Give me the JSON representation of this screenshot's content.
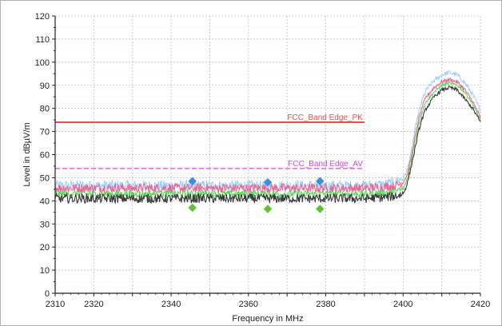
{
  "chart_data": {
    "type": "line",
    "title": "",
    "xlabel": "Frequency in MHz",
    "ylabel": "Level in dBµV/m",
    "xlim": [
      2310,
      2420
    ],
    "ylim": [
      0,
      120
    ],
    "x_ticks": [
      2310,
      2320,
      2340,
      2360,
      2380,
      2400,
      2420
    ],
    "y_ticks": [
      0,
      10,
      20,
      30,
      40,
      50,
      60,
      70,
      80,
      90,
      100,
      110,
      120
    ],
    "grid": true,
    "limit_lines": [
      {
        "label": "FCC_Band Edge_PK",
        "value": 74,
        "x_range": [
          2310,
          2390
        ],
        "style": "solid",
        "color": "#e84c4c"
      },
      {
        "label": "FCC_Band Edge_AV",
        "value": 54,
        "x_range": [
          2310,
          2390
        ],
        "style": "dashed",
        "color": "#e040e0"
      }
    ],
    "series": [
      {
        "color": "#9fd0f5",
        "x": [
          2310,
          2320,
          2330,
          2340,
          2350,
          2360,
          2370,
          2380,
          2390,
          2395,
          2398,
          2400,
          2401,
          2402,
          2403,
          2404,
          2405,
          2406,
          2408,
          2410,
          2412,
          2414,
          2416,
          2418,
          2420
        ],
        "y": [
          46.5,
          46.5,
          46.5,
          46.5,
          46.5,
          46.5,
          46.5,
          46.5,
          46.5,
          47,
          48,
          50,
          53,
          60,
          70,
          78,
          84,
          88,
          92,
          94.5,
          95.5,
          94.5,
          91,
          86,
          79
        ],
        "noise": 2.5
      },
      {
        "color": "#f06292",
        "x": [
          2310,
          2320,
          2330,
          2340,
          2350,
          2360,
          2370,
          2380,
          2390,
          2395,
          2398,
          2400,
          2401,
          2402,
          2403,
          2404,
          2405,
          2406,
          2408,
          2410,
          2412,
          2414,
          2416,
          2418,
          2420
        ],
        "y": [
          45.5,
          45.5,
          45.5,
          45.5,
          45.5,
          45.5,
          45.5,
          45.5,
          45.5,
          46,
          46.5,
          48,
          51,
          58,
          67,
          75,
          81,
          85,
          89,
          91.5,
          92.5,
          91.5,
          88,
          83,
          76
        ],
        "noise": 2.0
      },
      {
        "color": "#5cd65c",
        "x": [
          2310,
          2320,
          2330,
          2340,
          2350,
          2360,
          2370,
          2380,
          2390,
          2395,
          2398,
          2400,
          2401,
          2402,
          2403,
          2404,
          2405,
          2406,
          2408,
          2410,
          2412,
          2414,
          2416,
          2418,
          2420
        ],
        "y": [
          43,
          43,
          43,
          43,
          43,
          43,
          43,
          43,
          43,
          43.5,
          44,
          45,
          49,
          56,
          65,
          73,
          79,
          83,
          87,
          90,
          91,
          90,
          87,
          82,
          75
        ],
        "noise": 1.5
      },
      {
        "color": "#3a3a3a",
        "x": [
          2310,
          2320,
          2330,
          2340,
          2350,
          2360,
          2370,
          2380,
          2390,
          2395,
          2398,
          2400,
          2401,
          2402,
          2403,
          2404,
          2405,
          2406,
          2408,
          2410,
          2412,
          2414,
          2416,
          2418,
          2420
        ],
        "y": [
          41,
          41,
          41,
          41,
          41,
          41,
          41,
          41,
          41,
          41.5,
          42,
          43,
          47,
          54,
          62,
          70,
          76,
          80,
          85,
          88,
          89,
          88,
          84,
          80,
          74
        ],
        "noise": 2.0
      }
    ],
    "markers": [
      {
        "x": 2345.5,
        "y": 48.5,
        "color": "#3b8fe0",
        "shape": "diamond"
      },
      {
        "x": 2365,
        "y": 48,
        "color": "#3b8fe0",
        "shape": "diamond"
      },
      {
        "x": 2378.5,
        "y": 48.5,
        "color": "#3b8fe0",
        "shape": "diamond"
      },
      {
        "x": 2345.5,
        "y": 37,
        "color": "#5cc236",
        "shape": "diamond"
      },
      {
        "x": 2365,
        "y": 36.5,
        "color": "#5cc236",
        "shape": "diamond"
      },
      {
        "x": 2378.5,
        "y": 36.5,
        "color": "#5cc236",
        "shape": "diamond"
      }
    ]
  }
}
